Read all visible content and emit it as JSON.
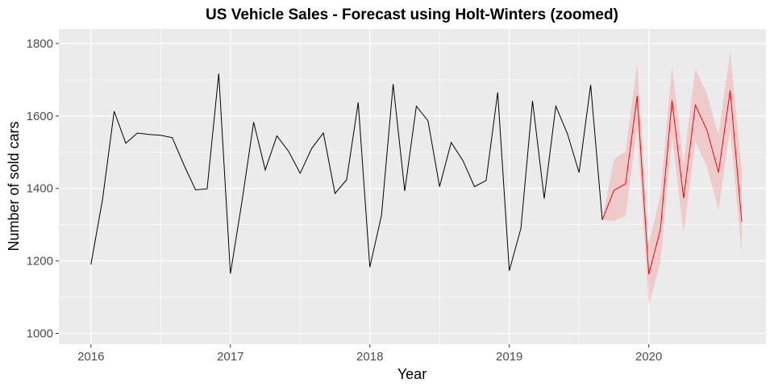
{
  "chart_data": {
    "type": "line",
    "title": "US Vehicle Sales - Forecast using Holt-Winters (zoomed)",
    "xlabel": "Year",
    "ylabel": "Number of sold cars",
    "xlim": [
      2015.77,
      2020.84
    ],
    "ylim": [
      970,
      1840
    ],
    "x_ticks": [
      2016,
      2017,
      2018,
      2019,
      2020
    ],
    "y_ticks": [
      1000,
      1200,
      1400,
      1600,
      1800
    ],
    "grid": true,
    "colors": {
      "panel_background": "#ebebeb",
      "grid": "#ffffff",
      "actual_line": "#000000",
      "forecast_line": "#ff0000",
      "interval_band": "#f4a9ab"
    },
    "series": [
      {
        "values": [
          1190,
          1370,
          1613,
          1525,
          1553,
          1549,
          1547,
          1540,
          1465,
          1396,
          1399,
          1717,
          1165,
          1365,
          1583,
          1451,
          1545,
          1503,
          1442,
          1511,
          1553,
          1386,
          1424,
          1637,
          1183,
          1326,
          1688,
          1393,
          1627,
          1587,
          1405,
          1527,
          1477,
          1405,
          1422,
          1665,
          1173,
          1290,
          1642,
          1372,
          1627,
          1551,
          1444,
          1686,
          1313
        ]
      },
      {
        "values": [
          1313,
          1395,
          1413,
          1655,
          1163,
          1287,
          1643,
          1373,
          1630,
          1561,
          1444,
          1671,
          1308
        ],
        "lower": [
          1313,
          1310,
          1325,
          1565,
          1078,
          1195,
          1545,
          1278,
          1530,
          1460,
          1342,
          1565,
          1220
        ],
        "upper": [
          1313,
          1480,
          1502,
          1745,
          1248,
          1380,
          1738,
          1468,
          1730,
          1662,
          1546,
          1777,
          1448
        ]
      }
    ]
  }
}
